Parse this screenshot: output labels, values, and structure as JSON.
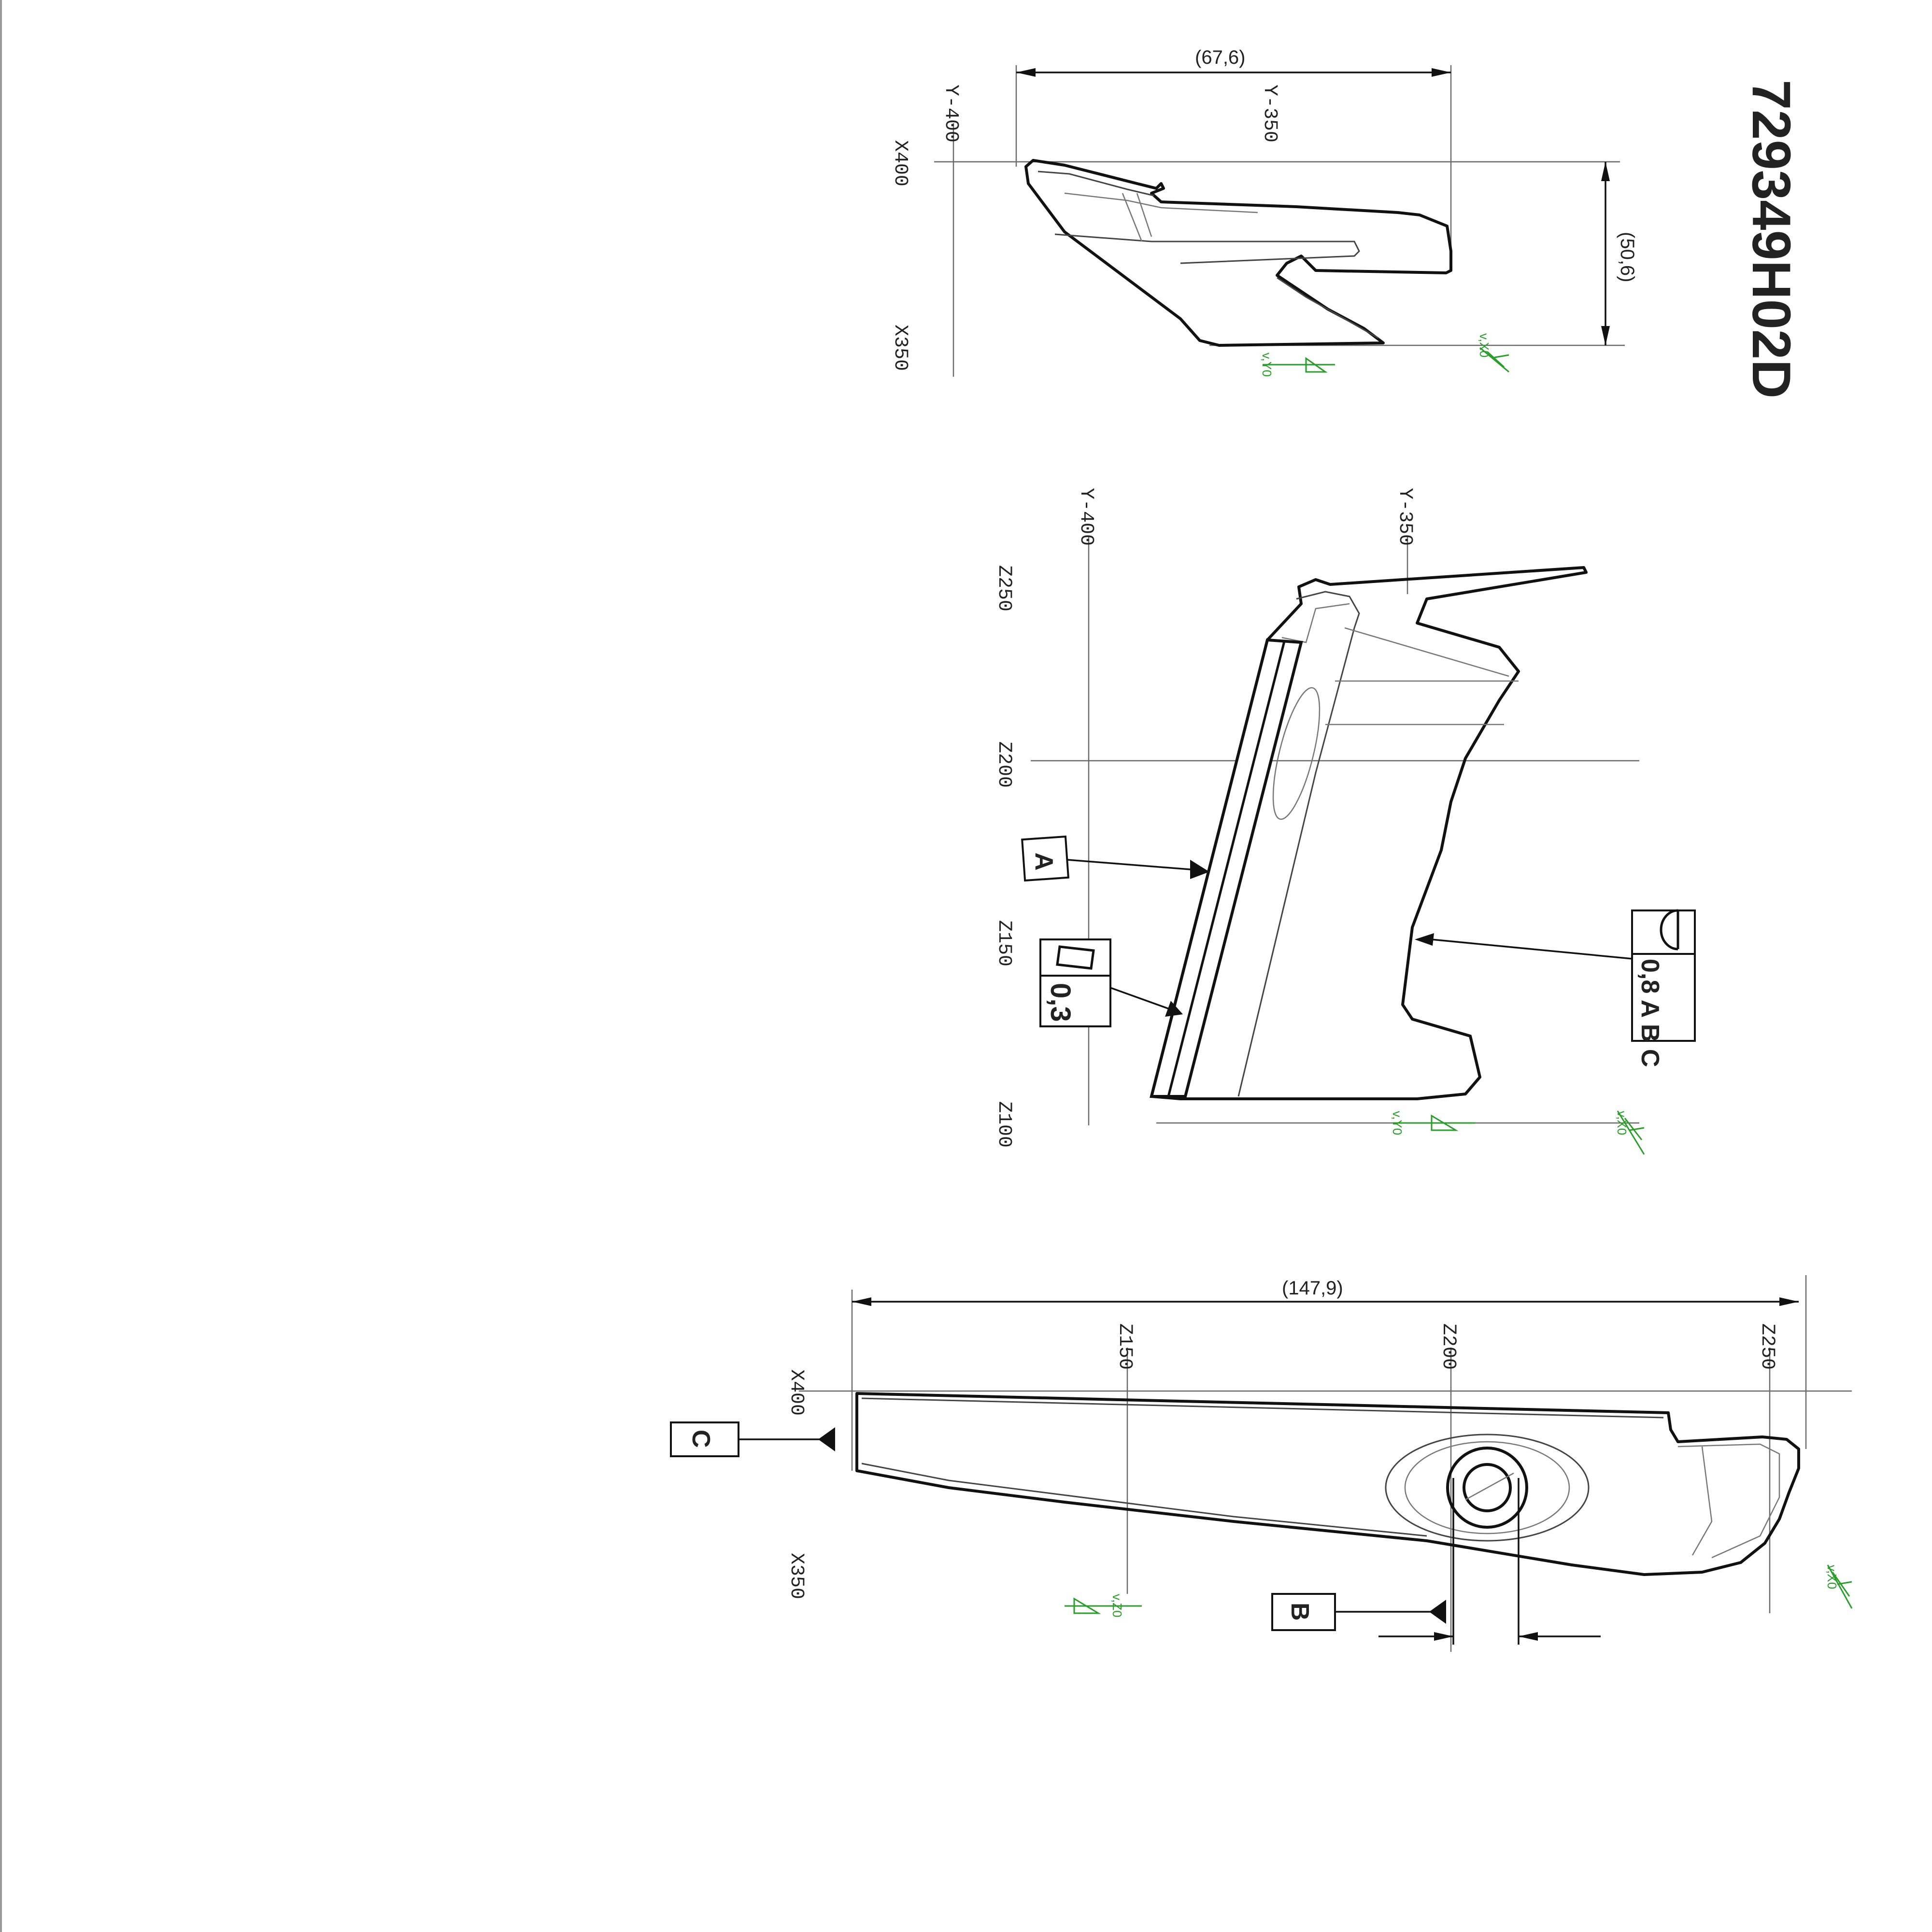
{
  "drawing_number": "729349H02D",
  "view_top": {
    "dim_width": "(67,6)",
    "dim_height": "(50,6)",
    "labels": {
      "y_a": "Y-400",
      "y_b": "Y-350",
      "x_a": "X400",
      "x_b": "X350"
    },
    "weld_1": "v,Y0",
    "weld_2": "v,X0"
  },
  "view_middle": {
    "labels": {
      "y_a": "Y-400",
      "y_b": "Y-350",
      "z_250": "Z250",
      "z_200": "Z200",
      "z_150": "Z150",
      "z_100": "Z100"
    },
    "datum_a": "A",
    "fcf_flatness": "0,3",
    "fcf_profile": "0,8 A B C",
    "weld_1": "v,Y0",
    "weld_2": "v,X0"
  },
  "view_bottom": {
    "dim_length": "(147,9)",
    "labels": {
      "z_150": "Z150",
      "z_200": "Z200",
      "z_250": "Z250",
      "x_a": "X400",
      "x_b": "X350"
    },
    "datum_b": "B",
    "datum_c": "C",
    "weld_1": "v,Z0",
    "weld_2": "v,X0"
  }
}
